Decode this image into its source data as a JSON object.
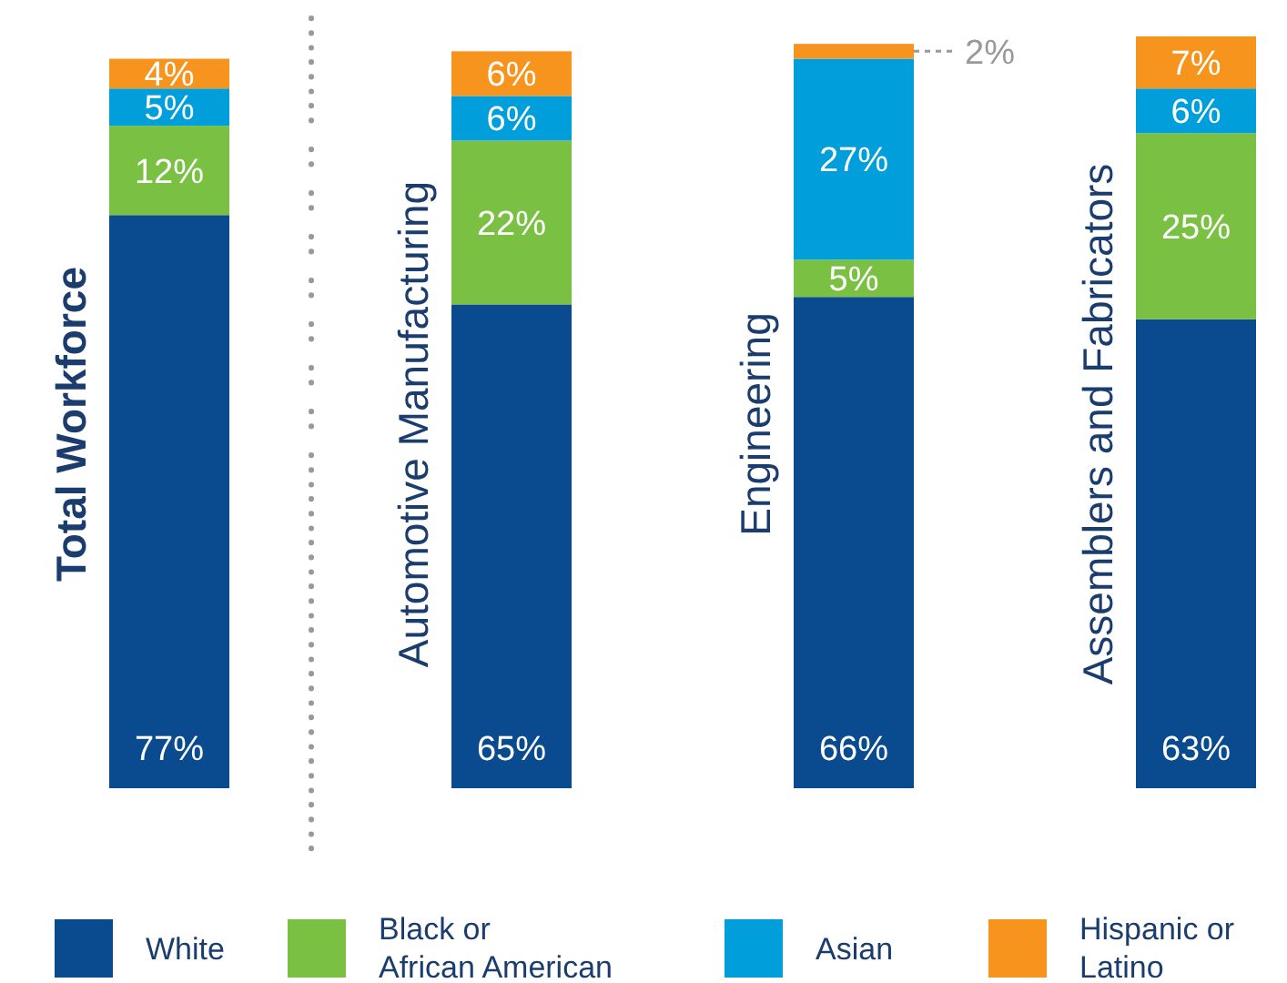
{
  "chart_data": {
    "type": "bar",
    "stacked": true,
    "categories": [
      "Total Workforce",
      "Automotive Manufacturing",
      "Engineering",
      "Assemblers and Fabricators"
    ],
    "series": [
      {
        "name": "White",
        "color": "#0a4b8f",
        "values": [
          77,
          65,
          66,
          63
        ],
        "value_labels": [
          "77%",
          "65%",
          "66%",
          "63%"
        ]
      },
      {
        "name": "Black or African American",
        "color": "#7ac143",
        "values": [
          12,
          22,
          5,
          25
        ],
        "value_labels": [
          "12%",
          "22%",
          "5%",
          "25%"
        ]
      },
      {
        "name": "Asian",
        "color": "#009fdc",
        "values": [
          5,
          6,
          27,
          6
        ],
        "value_labels": [
          "5%",
          "6%",
          "27%",
          "6%"
        ]
      },
      {
        "name": "Hispanic or Latino",
        "color": "#f7941d",
        "values": [
          4,
          6,
          2,
          7
        ],
        "value_labels": [
          "4%",
          "6%",
          "2%",
          "7%"
        ]
      }
    ],
    "legend": "bottom"
  }
}
